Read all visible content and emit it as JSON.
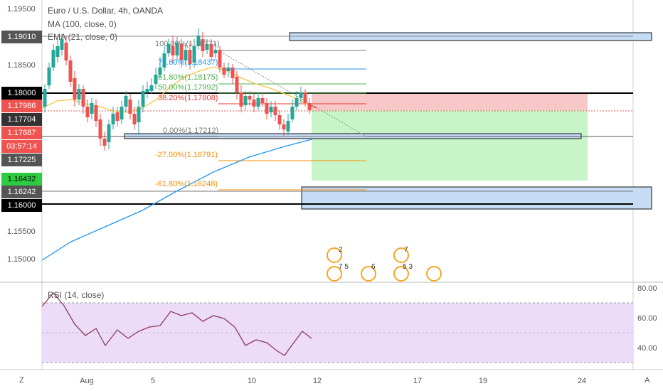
{
  "header": {
    "title": "Euro / U.S. Dollar, 4h, OANDA",
    "ma_label": "MA (100, close, 0)",
    "ema_label": "EMA (21, close, 0)"
  },
  "price_axis": {
    "ticks": [
      "1.19500",
      "1.18500",
      "1.15500",
      "1.15000"
    ],
    "badges": [
      {
        "text": "1.19010",
        "bg": "#555555",
        "fg": "#ffffff"
      },
      {
        "text": "1.18000",
        "bg": "#000000",
        "fg": "#ffffff"
      },
      {
        "text": "1.17986",
        "bg": "#ef5350",
        "fg": "#ffffff"
      },
      {
        "text": "1.17704",
        "bg": "#333333",
        "fg": "#ffffff"
      },
      {
        "text": "1.17687",
        "bg": "#ef5350",
        "fg": "#ffffff"
      },
      {
        "text": "03:57:14",
        "bg": "#ef5350",
        "fg": "#ffffff"
      },
      {
        "text": "1.17225",
        "bg": "#555555",
        "fg": "#ffffff"
      },
      {
        "text": "1.16432",
        "bg": "#2ecc40",
        "fg": "#000000"
      },
      {
        "text": "1.16242",
        "bg": "#555555",
        "fg": "#ffffff"
      },
      {
        "text": "1.16000",
        "bg": "#000000",
        "fg": "#ffffff"
      }
    ]
  },
  "fibonacci": [
    {
      "text": "100.00%(1.18771)",
      "color": "#777777"
    },
    {
      "text": "78.60%(1.18437)",
      "color": "#2196f3"
    },
    {
      "text": "61.80%(1.18175)",
      "color": "#4caf50"
    },
    {
      "text": "50.00%(1.17992)",
      "color": "#4caf50"
    },
    {
      "text": "38.20%(1.17808)",
      "color": "#e53935"
    },
    {
      "text": "0.00%(1.17212)",
      "color": "#777777"
    },
    {
      "text": "-27.00%(1.16791)",
      "color": "#fb8c00"
    },
    {
      "text": "-61.80%(1.16248)",
      "color": "#fb8c00"
    }
  ],
  "rsi": {
    "label": "RSI (14, close)",
    "ticks": [
      "80.00",
      "60.00",
      "40.00"
    ]
  },
  "time_axis": {
    "ticks": [
      "Aug",
      "5",
      "10",
      "12",
      "17",
      "19",
      "24"
    ]
  },
  "corners": {
    "z_label": "Z",
    "a_label": "A"
  },
  "events": [
    {
      "num": "2"
    },
    {
      "num": "7"
    },
    {
      "num": "7 5"
    },
    {
      "num": "6"
    },
    {
      "num": "5 3"
    },
    {
      "num": ""
    }
  ],
  "colors": {
    "up": "#26a69a",
    "down": "#ef5350",
    "ema": "#f5c542",
    "ma": "#2196f3",
    "rsi_line": "#8e3a5b",
    "rsi_band": "#e6d5f5"
  }
}
